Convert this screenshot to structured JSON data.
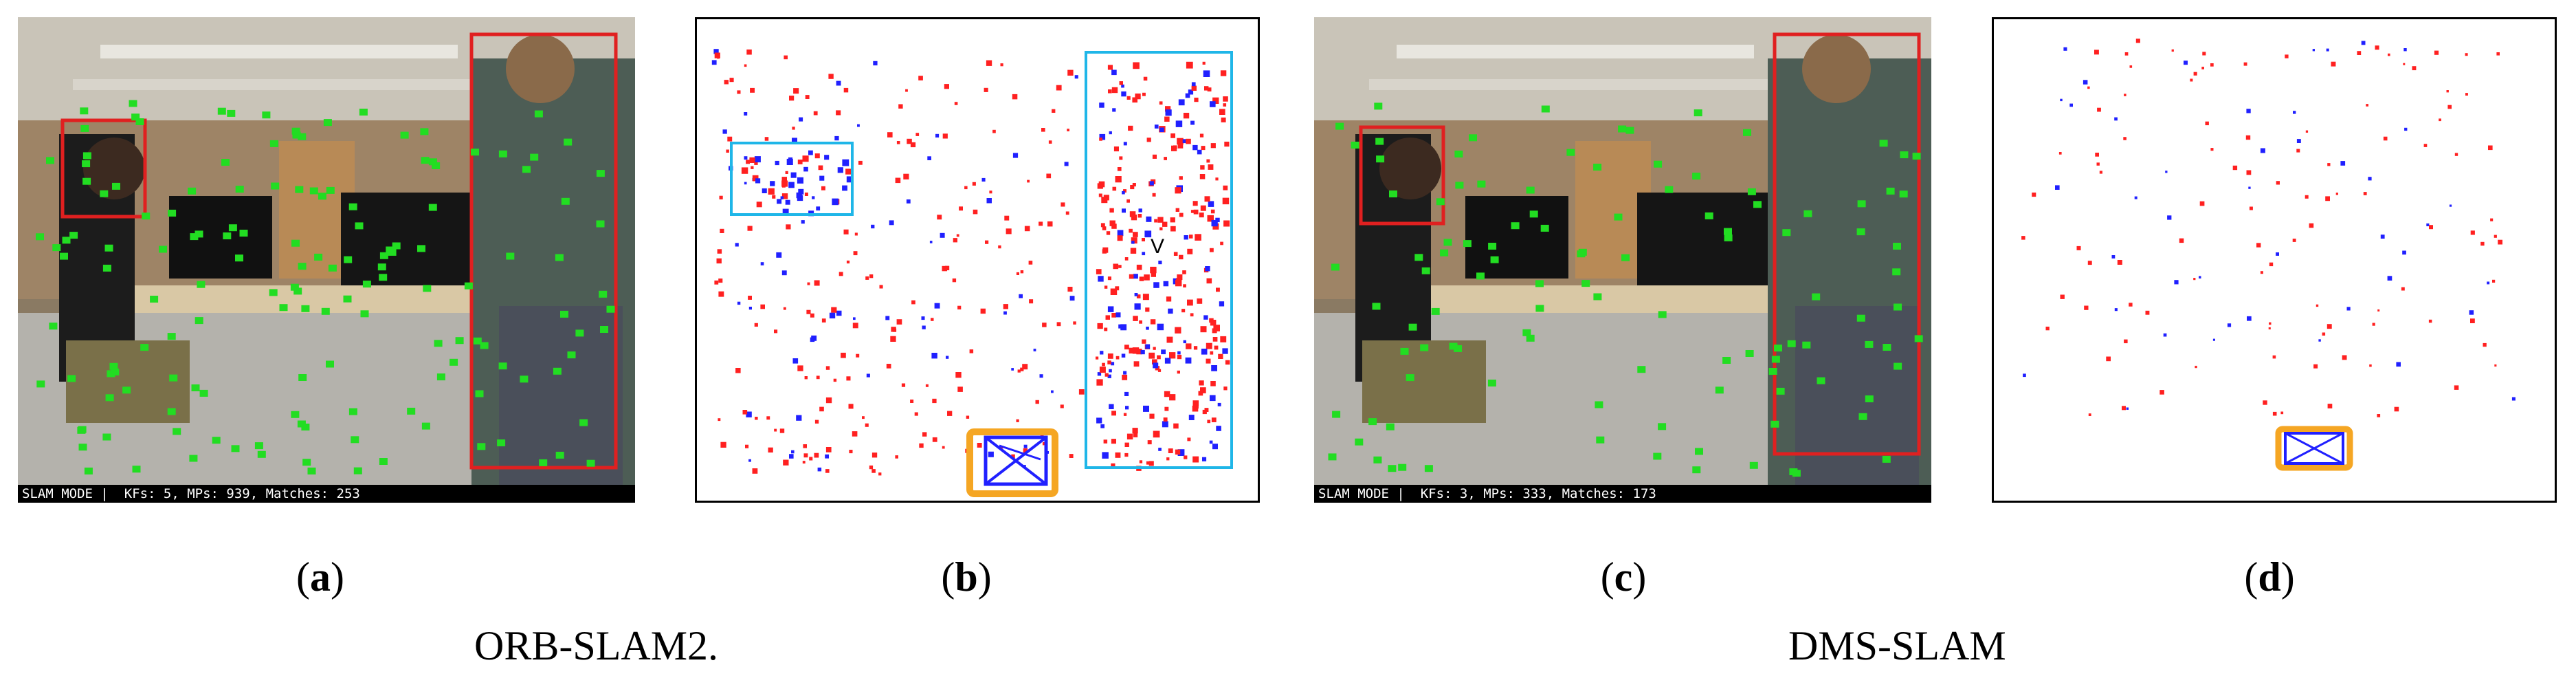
{
  "panels": [
    {
      "id": "a",
      "kind": "frame",
      "status_text": "SLAM MODE |  KFs: 5, MPs: 939, Matches: 253"
    },
    {
      "id": "b",
      "kind": "map",
      "viewer_label": "V"
    },
    {
      "id": "c",
      "kind": "frame",
      "status_text": "SLAM MODE |  KFs: 3, MPs: 333, Matches: 173"
    },
    {
      "id": "d",
      "kind": "map"
    }
  ],
  "labels": {
    "a": "a",
    "b": "b",
    "c": "c",
    "d": "d"
  },
  "captions": {
    "orb": "ORB-SLAM2.",
    "dms": "DMS-SLAM"
  },
  "colors": {
    "feature_point": "#22dd22",
    "dynamic_box": "#e02020",
    "map_point_red": "#ff2020",
    "map_point_blue": "#2020ff",
    "camera_keyframe": "#f5a623",
    "highlight_box": "#1fb6e8"
  }
}
